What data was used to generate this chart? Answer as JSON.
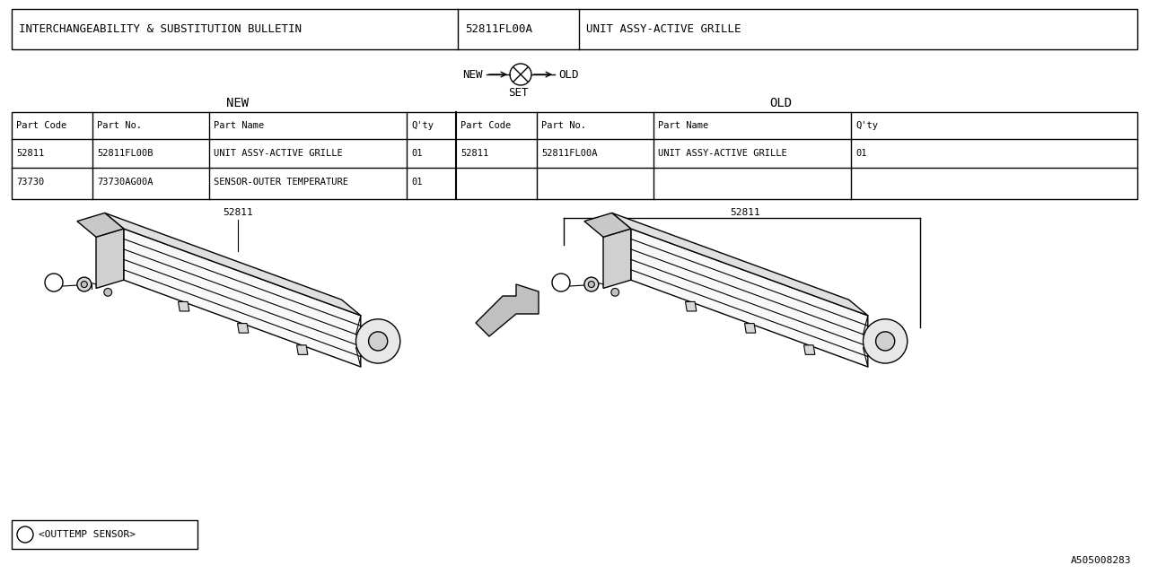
{
  "bg_color": "#ffffff",
  "line_color": "#000000",
  "text_color": "#000000",
  "header_col1": "INTERCHANGEABILITY & SUBSTITUTION BULLETIN",
  "header_col2": "52811FL00A",
  "header_col3": "UNIT ASSY-ACTIVE GRILLE",
  "table_headers": [
    "Part Code",
    "Part No.",
    "Part Name",
    "Q'ty",
    "Part Code",
    "Part No.",
    "Part Name",
    "Q'ty"
  ],
  "new_rows": [
    [
      "52811",
      "52811FL00B",
      "UNIT ASSY-ACTIVE GRILLE",
      "01"
    ],
    [
      "73730",
      "73730AG00A",
      "SENSOR-OUTER TEMPERATURE",
      "01"
    ]
  ],
  "old_rows": [
    [
      "52811",
      "52811FL00A",
      "UNIT ASSY-ACTIVE GRILLE",
      "01"
    ],
    [
      "",
      "",
      "",
      ""
    ]
  ],
  "part_label": "52811",
  "legend_text": "<OUTTEMP SENSOR>",
  "drawing_id": "A505008283"
}
